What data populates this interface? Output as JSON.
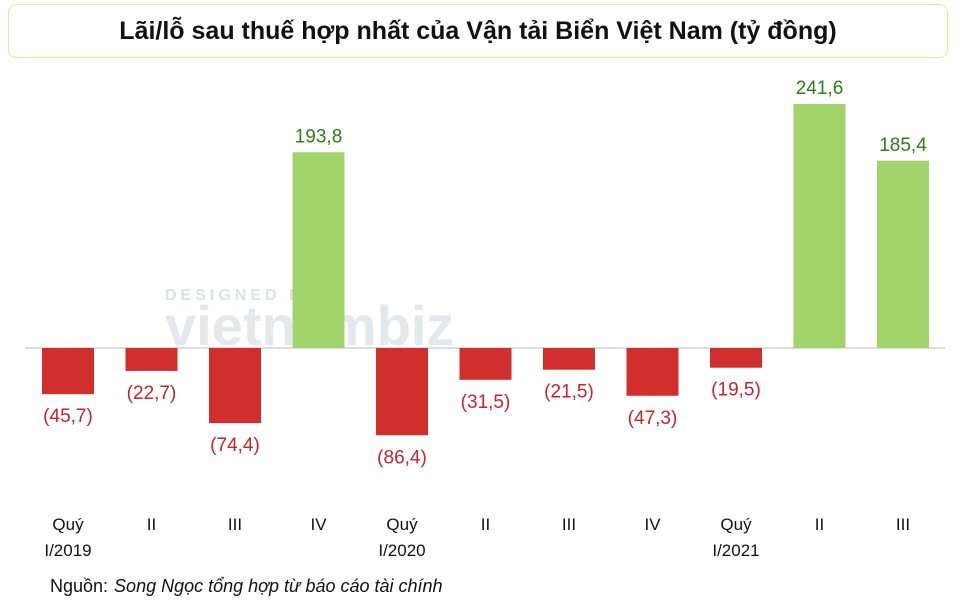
{
  "chart_data": {
    "type": "bar",
    "title": "Lãi/lỗ sau thuế hợp nhất của Vận tải Biển Việt Nam (tỷ đồng)",
    "categories": [
      "Quý I/2019",
      "II",
      "III",
      "IV",
      "Quý I/2020",
      "II",
      "III",
      "IV",
      "Quý I/2021",
      "II",
      "III"
    ],
    "values": [
      -45.7,
      -22.7,
      -74.4,
      193.8,
      -86.4,
      -31.5,
      -21.5,
      -47.3,
      -19.5,
      241.6,
      185.4
    ],
    "value_labels": [
      "(45,7)",
      "(22,7)",
      "(74,4)",
      "193,8",
      "(86,4)",
      "(31,5)",
      "(21,5)",
      "(47,3)",
      "(19,5)",
      "241,6",
      "185,4"
    ],
    "positive_color": "#a3d46c",
    "negative_color": "#d12f2e",
    "positive_label_color": "#2f7d1c",
    "negative_label_color": "#c0262d",
    "source_label": "Nguồn:",
    "source": "Song Ngọc tổng hợp từ báo cáo tài chính",
    "watermark": {
      "top": "DESIGNED BY",
      "brand": "vietnambiz"
    }
  }
}
